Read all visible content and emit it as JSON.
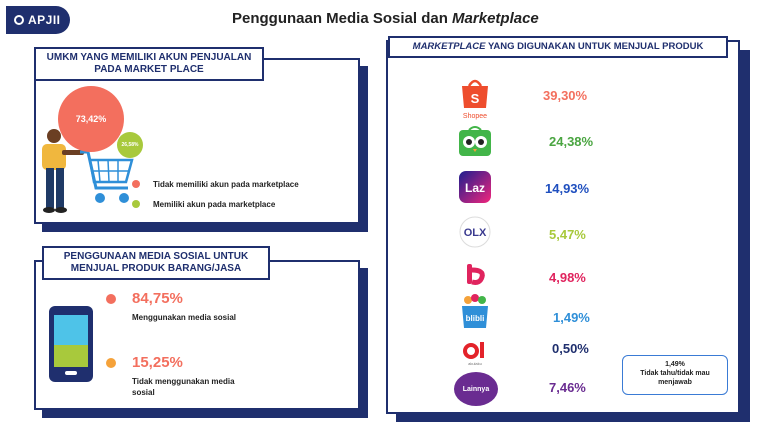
{
  "logo": {
    "text": "APJII"
  },
  "header": {
    "title_plain": "Penggunaan Media Sosial dan ",
    "title_italic": "Marketplace"
  },
  "umkm_panel": {
    "title": "UMKM YANG MEMILIKI AKUN PENJUALAN PADA MARKET PLACE",
    "big_value": "73,42%",
    "small_value": "26,58%",
    "legend": [
      {
        "label": "Tidak memiliki akun pada marketplace",
        "color": "#f36f5e"
      },
      {
        "label": "Memiliki akun pada marketplace",
        "color": "#a8c93c"
      }
    ]
  },
  "social_panel": {
    "title": "PENGGUNAAN MEDIA SOSIAL UNTUK MENJUAL PRODUK BARANG/JASA",
    "items": [
      {
        "value": "84,75%",
        "label": "Menggunakan media sosial",
        "color": "#f36f5e"
      },
      {
        "value": "15,25%",
        "label": "Tidak menggunakan media sosial",
        "color": "#f5a23a"
      }
    ]
  },
  "marketplace_panel": {
    "title_italic": "MARKETPLACE",
    "title_rest": " YANG DIGUNAKAN UNTUK MENJUAL PRODUK",
    "items": [
      {
        "name": "Shopee",
        "value": "39,30%",
        "color": "#f36f5e",
        "icon": "shopee-icon"
      },
      {
        "name": "Tokopedia",
        "value": "24,38%",
        "color": "#4aa541",
        "icon": "tokopedia-icon"
      },
      {
        "name": "Lazada",
        "value": "14,93%",
        "color": "#1f4fbf",
        "icon": "lazada-icon"
      },
      {
        "name": "OLX",
        "value": "5,47%",
        "color": "#a8c93c",
        "icon": "olx-icon"
      },
      {
        "name": "Bukalapak",
        "value": "4,98%",
        "color": "#e0245e",
        "icon": "bukalapak-icon"
      },
      {
        "name": "Blibli",
        "value": "1,49%",
        "color": "#2f8fd8",
        "icon": "blibli-icon"
      },
      {
        "name": "Akulaku",
        "value": "0,50%",
        "color": "#1f2f6e",
        "icon": "akulaku-icon"
      },
      {
        "name": "Lainnya",
        "value": "7,46%",
        "color": "#6a2c91",
        "icon": "lainnya-icon"
      }
    ],
    "shopee_label": "Shopee",
    "akulaku_sub": "akulaku",
    "lainnya_label": "Lainnya",
    "note": {
      "value": "1,49%",
      "label": "Tidak tahu/tidak mau menjawab"
    }
  }
}
